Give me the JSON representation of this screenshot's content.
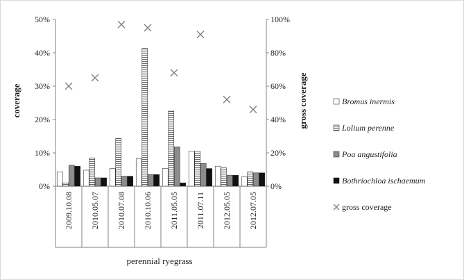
{
  "chart_data": {
    "type": "bar",
    "categories": [
      "2009.10.08",
      "2010.05.07",
      "2010.07.08",
      "2010.10.06",
      "2011.05.05",
      "2011.07.11",
      "2012.05.05",
      "2012.07.05"
    ],
    "xlabel": "perennial ryegrass",
    "ylabel": "coverage",
    "ylabel_right": "gross coverage",
    "ylim": [
      0,
      0.5
    ],
    "ylim_right": [
      0,
      1.0
    ],
    "y_ticks": [
      "0%",
      "10%",
      "20%",
      "30%",
      "40%",
      "50%"
    ],
    "y_ticks_right": [
      "0%",
      "20%",
      "40%",
      "60%",
      "80%",
      "100%"
    ],
    "legend_position": "right",
    "gridlines": false,
    "series": [
      {
        "name": "Bromus inermis",
        "axis": "left",
        "kind": "bar",
        "fill": "white",
        "values": [
          0.043,
          0.048,
          0.053,
          0.083,
          0.053,
          0.105,
          0.06,
          0.028
        ]
      },
      {
        "name": "Lolium perenne",
        "axis": "left",
        "kind": "bar",
        "fill": "hatched-light",
        "values": [
          0.01,
          0.085,
          0.143,
          0.413,
          0.225,
          0.105,
          0.055,
          0.043
        ]
      },
      {
        "name": "Poa angustifolia",
        "axis": "left",
        "kind": "bar",
        "fill": "gray",
        "values": [
          0.063,
          0.025,
          0.03,
          0.035,
          0.118,
          0.068,
          0.033,
          0.04
        ]
      },
      {
        "name": "Bothriochloa ischaemum",
        "axis": "left",
        "kind": "bar",
        "fill": "black",
        "values": [
          0.06,
          0.025,
          0.03,
          0.035,
          0.01,
          0.053,
          0.033,
          0.04
        ]
      },
      {
        "name": "gross coverage",
        "axis": "right",
        "kind": "marker",
        "marker": "x",
        "values": [
          0.6,
          0.65,
          0.97,
          0.95,
          0.68,
          0.91,
          0.52,
          0.46
        ]
      }
    ],
    "legend_labels": [
      "Bromus inermis",
      "Lolium perenne",
      "Poa angustifolia",
      "Bothriochloa ischaemum",
      "gross coverage"
    ],
    "colors": {
      "axis": "#808080",
      "bar_edge": "#333333",
      "gray_fill": "#8c8c8c",
      "hatch": "#666666",
      "black_fill": "#111111",
      "marker": "#808080"
    }
  }
}
